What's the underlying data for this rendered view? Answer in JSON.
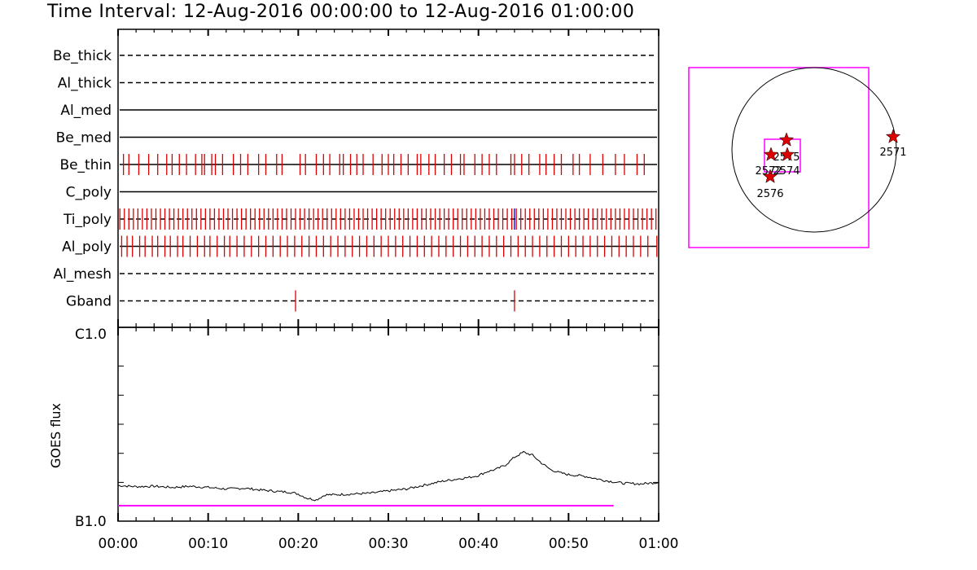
{
  "title": "Time Interval: 12-Aug-2016 00:00:00 to 12-Aug-2016 01:00:00",
  "colors": {
    "event_red": "#dd0000",
    "ti_blue": "#0000cc",
    "magenta": "#ff00ff",
    "axis": "#000000"
  },
  "chart_data": [
    {
      "type": "scatter",
      "description_kind": "channel event tick strips",
      "x_unit": "minutes after 00:00",
      "channels": [
        {
          "name": "Be_thick",
          "line": "dashed",
          "events": []
        },
        {
          "name": "Al_thick",
          "line": "dashed",
          "events": []
        },
        {
          "name": "Al_med",
          "line": "solid",
          "events": []
        },
        {
          "name": "Be_med",
          "line": "solid",
          "events": []
        },
        {
          "name": "Be_thin",
          "line": "solid",
          "events": [
            0.6,
            1.2,
            2.3,
            3.4,
            4.4,
            5.4,
            6.0,
            6.8,
            7.6,
            8.6,
            9.3,
            9.6,
            10.4,
            10.8,
            11.6,
            12.8,
            13.6,
            14.4,
            15.6,
            16.4,
            17.6,
            18.2,
            20.2,
            20.8,
            22.0,
            22.8,
            23.5,
            24.6,
            25.0,
            25.8,
            26.5,
            27.2,
            28.3,
            29.3,
            30.0,
            30.6,
            31.4,
            32.2,
            33.2,
            33.6,
            34.5,
            35.2,
            36.2,
            37.0,
            38.0,
            38.4,
            39.6,
            40.4,
            41.2,
            42.0,
            43.6,
            44.0,
            44.8,
            45.6,
            46.8,
            47.5,
            48.4,
            49.2,
            50.5,
            51.2,
            52.4,
            53.8,
            55.2,
            56.2,
            57.6,
            58.4
          ]
        },
        {
          "name": "C_poly",
          "line": "solid",
          "events": []
        },
        {
          "name": "Ti_poly",
          "line": "dashed",
          "events": [
            0.2,
            0.7,
            1.2,
            1.7,
            2.2,
            2.7,
            3.2,
            3.7,
            4.2,
            4.7,
            5.2,
            5.7,
            6.2,
            6.7,
            7.2,
            7.7,
            8.2,
            8.7,
            9.2,
            9.7,
            10.2,
            10.7,
            11.2,
            11.7,
            12.2,
            12.7,
            13.2,
            13.7,
            14.2,
            14.7,
            15.2,
            15.7,
            16.2,
            16.7,
            17.2,
            17.7,
            18.2,
            18.7,
            19.2,
            19.7,
            20.2,
            20.7,
            21.2,
            21.7,
            22.2,
            22.7,
            23.2,
            23.7,
            24.2,
            24.7,
            25.2,
            25.7,
            26.2,
            26.7,
            27.2,
            27.7,
            28.2,
            28.7,
            29.2,
            29.7,
            30.2,
            30.7,
            31.2,
            31.7,
            32.2,
            32.7,
            33.2,
            33.7,
            34.2,
            34.7,
            35.2,
            35.7,
            36.2,
            36.7,
            37.2,
            37.7,
            38.2,
            38.7,
            39.2,
            39.7,
            40.2,
            40.7,
            41.2,
            41.7,
            42.2,
            42.7,
            43.2,
            43.7,
            44.2,
            44.7,
            45.2,
            45.7,
            46.2,
            46.7,
            47.2,
            47.7,
            48.2,
            48.7,
            49.2,
            49.7,
            50.2,
            50.7,
            51.2,
            51.7,
            52.2,
            52.7,
            53.2,
            53.7,
            54.2,
            54.7,
            55.2,
            55.7,
            56.2,
            56.7,
            57.2,
            57.7,
            58.2,
            58.7,
            59.2,
            59.7
          ],
          "highlight_events": [
            44.0
          ]
        },
        {
          "name": "Al_poly",
          "line": "solid",
          "events": [
            0.4,
            1.0,
            1.6,
            2.4,
            3.0,
            3.8,
            4.4,
            5.2,
            5.8,
            6.6,
            7.2,
            8.0,
            8.8,
            9.6,
            10.2,
            11.0,
            11.8,
            12.4,
            13.2,
            14.0,
            14.8,
            15.6,
            16.4,
            17.2,
            18.0,
            18.8,
            19.6,
            20.4,
            21.2,
            22.0,
            22.8,
            23.6,
            24.4,
            25.2,
            26.0,
            26.8,
            27.6,
            28.4,
            29.2,
            30.0,
            30.8,
            31.6,
            32.4,
            33.2,
            34.0,
            34.8,
            35.6,
            36.4,
            37.2,
            38.0,
            38.8,
            39.6,
            40.4,
            41.2,
            42.0,
            42.8,
            43.6,
            44.4,
            45.2,
            46.0,
            46.8,
            47.6,
            48.4,
            49.2,
            50.0,
            50.8,
            51.6,
            52.4,
            53.2,
            54.0,
            54.8,
            55.6,
            56.4,
            57.2,
            58.0,
            58.8,
            59.8
          ]
        },
        {
          "name": "Al_mesh",
          "line": "dashed",
          "events": []
        },
        {
          "name": "Gband",
          "line": "dashed",
          "events": [
            19.7,
            44.0
          ]
        }
      ]
    },
    {
      "type": "line",
      "ylabel": "GOES flux",
      "y_tick_labels": [
        "C1.0",
        "B1.0"
      ],
      "x_ticks": [
        "00:00",
        "00:10",
        "00:20",
        "00:30",
        "00:40",
        "00:50",
        "01:00"
      ],
      "x_unit": "minutes after 00:00",
      "xlim": [
        0,
        60
      ],
      "ylim_log_labels": [
        "B1.0",
        "C1.0"
      ],
      "series": [
        {
          "x": [
            0,
            2,
            4,
            6,
            8,
            10,
            12,
            14,
            16,
            18,
            19,
            20,
            21,
            22,
            23,
            24,
            26,
            28,
            30,
            32,
            34,
            36,
            38,
            39,
            40,
            41,
            42,
            43,
            44,
            45,
            46,
            47,
            48,
            49,
            50,
            51,
            52,
            54,
            56,
            58,
            60
          ],
          "y_fraction": [
            0.184,
            0.178,
            0.18,
            0.174,
            0.18,
            0.174,
            0.166,
            0.17,
            0.16,
            0.152,
            0.15,
            0.14,
            0.118,
            0.11,
            0.136,
            0.136,
            0.14,
            0.144,
            0.156,
            0.166,
            0.186,
            0.206,
            0.22,
            0.226,
            0.236,
            0.256,
            0.268,
            0.29,
            0.33,
            0.356,
            0.34,
            0.3,
            0.266,
            0.25,
            0.24,
            0.236,
            0.23,
            0.21,
            0.196,
            0.192,
            0.2
          ]
        },
        {
          "x": [
            0,
            55
          ],
          "y_fraction": [
            0.08,
            0.08
          ],
          "color": "magenta"
        }
      ]
    }
  ],
  "sun_map": {
    "circle": true,
    "stars": [
      {
        "label": "2571"
      },
      {
        "label": "2576"
      },
      {
        "label": "2575"
      },
      {
        "label": "2572"
      },
      {
        "label": "2574"
      }
    ]
  }
}
